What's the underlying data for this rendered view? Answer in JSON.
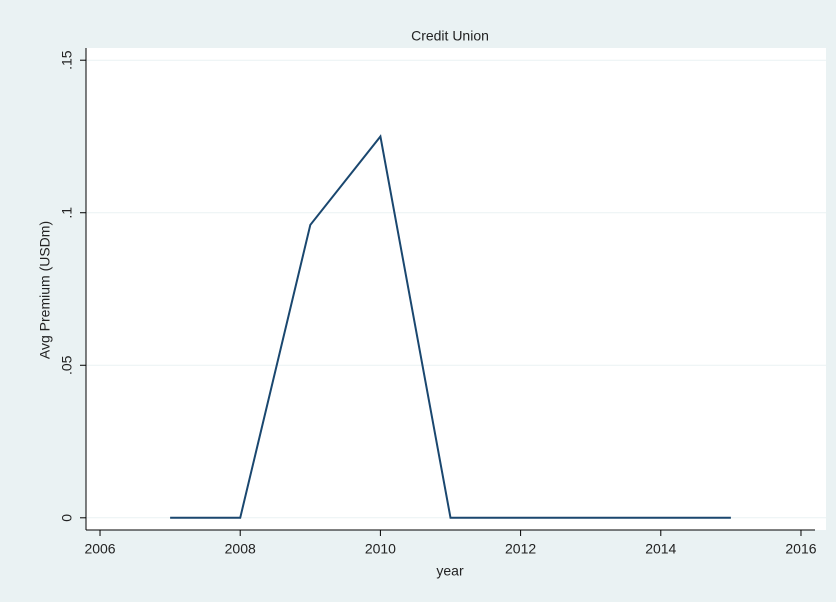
{
  "chart_data": {
    "type": "line",
    "title": "Credit Union",
    "x_label": "year",
    "y_label": "Avg Premium (USDm)",
    "x": [
      2007,
      2008,
      2009,
      2010,
      2011,
      2012,
      2013,
      2014,
      2015
    ],
    "values": [
      0,
      0,
      0.096,
      0.125,
      0,
      0,
      0,
      0,
      0
    ],
    "color": "#1a476f",
    "xlim": [
      2005.8,
      2016.2
    ],
    "xticks": [
      2006,
      2008,
      2010,
      2012,
      2014,
      2016
    ],
    "ylim": [
      -0.004,
      0.154
    ],
    "yticks": [
      0,
      {
        "value": 0.05,
        "label": ".05"
      },
      {
        "value": 0.1,
        "label": ".1"
      },
      {
        "value": 0.15,
        "label": ".15"
      }
    ],
    "grid": true
  }
}
